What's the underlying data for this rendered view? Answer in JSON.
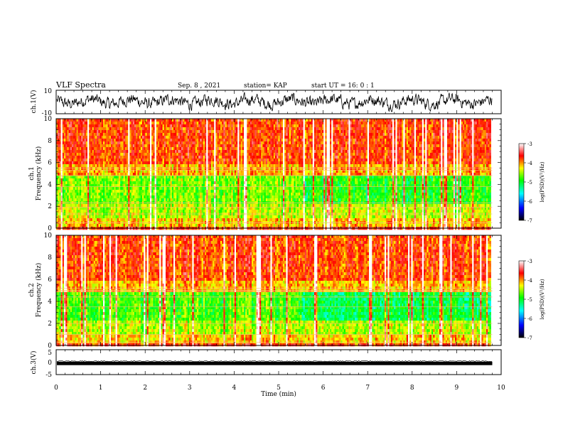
{
  "header": {
    "title": "VLF Spectra",
    "date": "Sep. 8 , 2021",
    "station": "station= KAP",
    "start": "start  UT =   16: 0  : 1"
  },
  "chart_data": [
    {
      "type": "line",
      "panel": "waveform-ch1",
      "ylabel": "ch.1(V)",
      "ylim": [
        -10,
        10
      ],
      "yticks": [
        "10",
        "-10"
      ],
      "xlim": [
        0,
        10
      ],
      "description_values": "dense oscillating trace, roughly between -7 and 7 V across 0-9.8 min"
    },
    {
      "type": "heatmap",
      "panel": "spectrogram-ch1",
      "ylabel_top": "ch.1",
      "ylabel": "Frequency  (kHz)",
      "ylim": [
        0,
        10
      ],
      "yticks": [
        "0",
        "2",
        "4",
        "6",
        "8",
        "10"
      ],
      "xlim": [
        0,
        10
      ],
      "data_end_min": 9.8,
      "colorbar": {
        "label": "log(PSD)(V²/Hz)",
        "range": [
          -7,
          -3
        ],
        "ticks": [
          "-3",
          "-4",
          "-5",
          "-6",
          "-7"
        ],
        "colors": [
          "#000000",
          "#0000ff",
          "#00ffff",
          "#00ff00",
          "#ffff00",
          "#ff0000",
          "#ffffff"
        ]
      }
    },
    {
      "type": "heatmap",
      "panel": "spectrogram-ch2",
      "ylabel_top": "ch.2",
      "ylabel": "Frequency  (kHz)",
      "ylim": [
        0,
        10
      ],
      "yticks": [
        "0",
        "2",
        "4",
        "6",
        "8",
        "10"
      ],
      "xlim": [
        0,
        10
      ],
      "data_end_min": 9.8,
      "colorbar": {
        "label": "log(PSD)(V²/Hz)",
        "range": [
          -7,
          -3
        ],
        "ticks": [
          "-3",
          "-4",
          "-5",
          "-6",
          "-7"
        ],
        "colors": [
          "#000000",
          "#0000ff",
          "#00ffff",
          "#00ff00",
          "#ffff00",
          "#ff0000",
          "#ffffff"
        ]
      }
    },
    {
      "type": "line",
      "panel": "waveform-ch3",
      "ylabel": "ch.3(V)",
      "ylim": [
        -5,
        5
      ],
      "yticks": [
        "5",
        "0",
        "-5"
      ],
      "xlim": [
        0,
        10
      ],
      "xlabel": "Time  (min)",
      "xticks": [
        "0",
        "1",
        "2",
        "3",
        "4",
        "5",
        "6",
        "7",
        "8",
        "9",
        "10"
      ],
      "description_values": "thick flat band around -0.5 V across 0-9.8 min"
    }
  ]
}
